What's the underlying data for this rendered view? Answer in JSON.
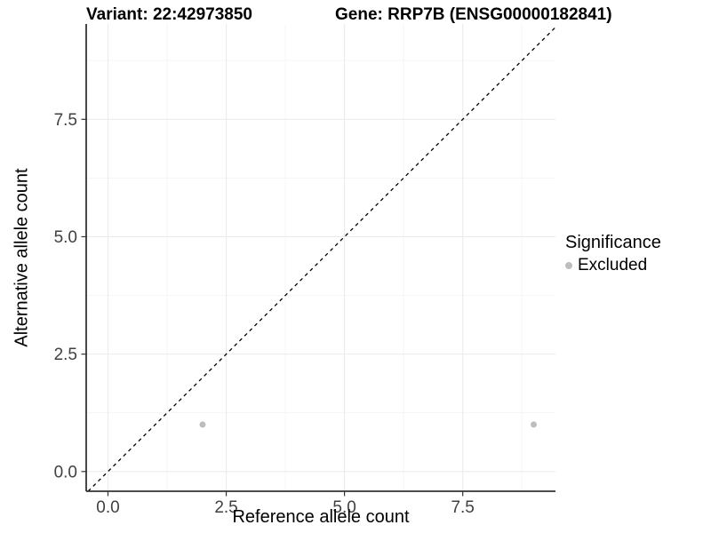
{
  "chart_data": {
    "type": "scatter",
    "title_left": "Variant: 22:42973850",
    "title_right": "Gene: RRP7B (ENSG00000182841)",
    "xlabel": "Reference allele count",
    "ylabel": "Alternative allele count",
    "xlim": [
      -0.46,
      9.46
    ],
    "ylim": [
      -0.42,
      9.53
    ],
    "x_major_ticks": [
      0,
      2.5,
      5,
      7.5
    ],
    "x_tick_labels": [
      "0.0",
      "2.5",
      "5.0",
      "7.5"
    ],
    "y_major_ticks": [
      0,
      2.5,
      5,
      7.5
    ],
    "y_tick_labels": [
      "0.0",
      "2.5",
      "5.0",
      "7.5"
    ],
    "minor_ticks": [
      1.25,
      3.75,
      6.25,
      8.75
    ],
    "grid": "major+minor",
    "series": [
      {
        "name": "Excluded",
        "marker": "circle",
        "color": "#bdbdbd",
        "points": [
          [
            2,
            1
          ],
          [
            9,
            1
          ]
        ]
      }
    ],
    "reference_line": {
      "kind": "identity",
      "slope": 1,
      "intercept": 0,
      "style": "dashed",
      "color": "#000000"
    },
    "legend": {
      "title": "Significance",
      "position": "right",
      "entries": [
        {
          "label": "Excluded",
          "color": "#bdbdbd",
          "marker": "circle"
        }
      ]
    }
  },
  "colors": {
    "background": "#ffffff",
    "axis_line": "#333333",
    "tick_mark": "#333333",
    "tick_label": "#404040",
    "grid_major": "#ebebeb",
    "grid_minor": "#f4f4f4"
  }
}
